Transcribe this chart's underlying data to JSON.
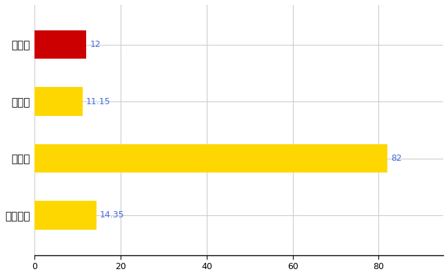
{
  "categories": [
    "全国平均",
    "県最大",
    "県平均",
    "平川市"
  ],
  "values": [
    14.35,
    82,
    11.15,
    12
  ],
  "bar_colors": [
    "#FFD700",
    "#FFD700",
    "#FFD700",
    "#CC0000"
  ],
  "value_labels": [
    "14.35",
    "82",
    "11.15",
    "12"
  ],
  "label_color": "#4169E1",
  "background_color": "#FFFFFF",
  "grid_color": "#CCCCCC",
  "xlim": [
    0,
    95
  ],
  "xticks": [
    0,
    20,
    40,
    60,
    80
  ],
  "bar_height": 0.5,
  "figsize": [
    6.5,
    4.0
  ],
  "dpi": 100
}
